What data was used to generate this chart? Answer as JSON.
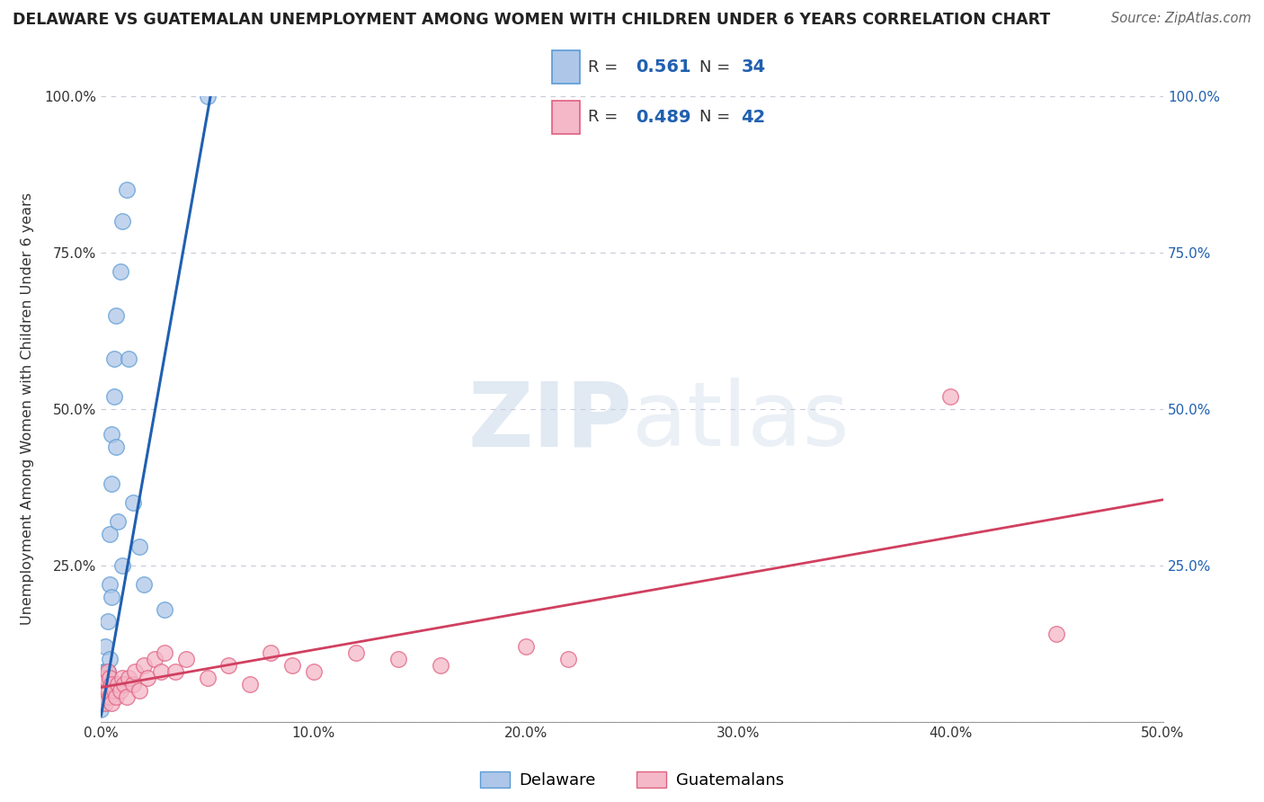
{
  "title": "DELAWARE VS GUATEMALAN UNEMPLOYMENT AMONG WOMEN WITH CHILDREN UNDER 6 YEARS CORRELATION CHART",
  "source": "Source: ZipAtlas.com",
  "ylabel": "Unemployment Among Women with Children Under 6 years",
  "xlim": [
    0,
    0.5
  ],
  "ylim": [
    0,
    1.0
  ],
  "delaware_color": "#aec6e8",
  "delaware_edge": "#5b9bd5",
  "guatemalan_color": "#f4b8c8",
  "guatemalan_edge": "#e06080",
  "delaware_line_color": "#2060b0",
  "guatemalan_line_color": "#d04060",
  "R_delaware": "0.561",
  "N_delaware": "34",
  "R_guatemalan": "0.489",
  "N_guatemalan": "42",
  "watermark_zip": "ZIP",
  "watermark_atlas": "atlas",
  "grid_color": "#c8c8d8",
  "background_color": "#ffffff",
  "blue_label_color": "#2060b0",
  "text_color": "#333333",
  "delaware_label": "Delaware",
  "guatemalan_label": "Guatemalans",
  "del_line_x0": 0.0,
  "del_line_y0": 0.01,
  "del_line_x1": 0.052,
  "del_line_y1": 1.01,
  "gua_line_x0": 0.0,
  "gua_line_y0": 0.055,
  "gua_line_x1": 0.5,
  "gua_line_y1": 0.355,
  "del_pts_x": [
    0.0,
    0.0,
    0.001,
    0.001,
    0.001,
    0.001,
    0.001,
    0.002,
    0.002,
    0.002,
    0.003,
    0.003,
    0.003,
    0.004,
    0.004,
    0.004,
    0.005,
    0.005,
    0.005,
    0.006,
    0.006,
    0.007,
    0.007,
    0.008,
    0.009,
    0.01,
    0.01,
    0.012,
    0.013,
    0.015,
    0.018,
    0.02,
    0.03,
    0.05
  ],
  "del_pts_y": [
    0.02,
    0.03,
    0.04,
    0.05,
    0.06,
    0.07,
    0.08,
    0.04,
    0.08,
    0.12,
    0.05,
    0.08,
    0.16,
    0.1,
    0.22,
    0.3,
    0.2,
    0.38,
    0.46,
    0.52,
    0.58,
    0.44,
    0.65,
    0.32,
    0.72,
    0.25,
    0.8,
    0.85,
    0.58,
    0.35,
    0.28,
    0.22,
    0.18,
    1.0
  ],
  "gua_pts_x": [
    0.0,
    0.001,
    0.001,
    0.002,
    0.002,
    0.003,
    0.003,
    0.004,
    0.004,
    0.005,
    0.005,
    0.006,
    0.007,
    0.008,
    0.009,
    0.01,
    0.011,
    0.012,
    0.013,
    0.015,
    0.016,
    0.018,
    0.02,
    0.022,
    0.025,
    0.028,
    0.03,
    0.035,
    0.04,
    0.05,
    0.06,
    0.07,
    0.08,
    0.09,
    0.1,
    0.12,
    0.14,
    0.16,
    0.2,
    0.22,
    0.4,
    0.45
  ],
  "gua_pts_y": [
    0.05,
    0.04,
    0.06,
    0.03,
    0.07,
    0.05,
    0.08,
    0.04,
    0.07,
    0.03,
    0.06,
    0.05,
    0.04,
    0.06,
    0.05,
    0.07,
    0.06,
    0.04,
    0.07,
    0.06,
    0.08,
    0.05,
    0.09,
    0.07,
    0.1,
    0.08,
    0.11,
    0.08,
    0.1,
    0.07,
    0.09,
    0.06,
    0.11,
    0.09,
    0.08,
    0.11,
    0.1,
    0.09,
    0.12,
    0.1,
    0.52,
    0.14
  ]
}
